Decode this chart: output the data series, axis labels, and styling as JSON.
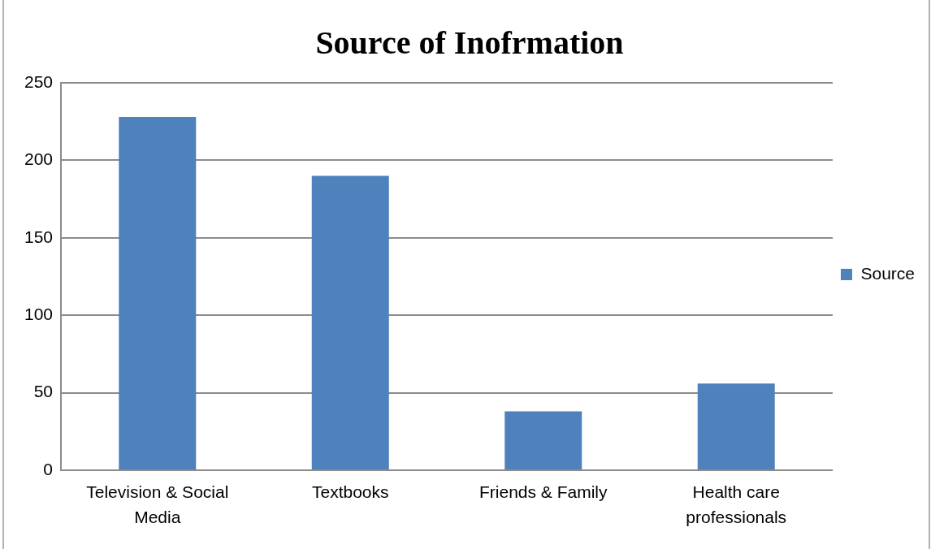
{
  "chart_data": {
    "type": "bar",
    "title": "Source of Inofrmation",
    "categories": [
      "Television & Social Media",
      "Textbooks",
      "Friends & Family",
      "Health care professionals"
    ],
    "series": [
      {
        "name": "Source",
        "color": "#4f81bd",
        "values": [
          228,
          190,
          38,
          56
        ]
      }
    ],
    "ylim": [
      0,
      250
    ],
    "yticks": [
      0,
      50,
      100,
      150,
      200,
      250
    ],
    "grid": "y",
    "legend": "right"
  }
}
